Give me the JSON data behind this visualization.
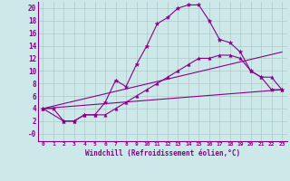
{
  "xlabel": "Windchill (Refroidissement éolien,°C)",
  "background_color": "#cce8e8",
  "grid_color": "#b0c8c8",
  "line_color": "#880088",
  "xlim": [
    -0.5,
    23.5
  ],
  "ylim": [
    -1.2,
    21
  ],
  "xticks": [
    0,
    1,
    2,
    3,
    4,
    5,
    6,
    7,
    8,
    9,
    10,
    11,
    12,
    13,
    14,
    15,
    16,
    17,
    18,
    19,
    20,
    21,
    22,
    23
  ],
  "yticks": [
    0,
    2,
    4,
    6,
    8,
    10,
    12,
    14,
    16,
    18,
    20
  ],
  "ytick_labels": [
    "-0",
    "2",
    "4",
    "6",
    "8",
    "10",
    "12",
    "14",
    "16",
    "18",
    "20"
  ],
  "line1_x": [
    0,
    1,
    2,
    3,
    4,
    5,
    6,
    7,
    8,
    9,
    10,
    11,
    12,
    13,
    14,
    15,
    16,
    17,
    18,
    19,
    20,
    21,
    22,
    23
  ],
  "line1_y": [
    4,
    4,
    2,
    2,
    3,
    3,
    5,
    8.5,
    7.5,
    11,
    14,
    17.5,
    18.5,
    20,
    20.5,
    20.5,
    18,
    15,
    14.5,
    13,
    10,
    9,
    7,
    7
  ],
  "line2_x": [
    0,
    23
  ],
  "line2_y": [
    4,
    7
  ],
  "line3_x": [
    0,
    23
  ],
  "line3_y": [
    4,
    13
  ],
  "line4_x": [
    0,
    2,
    3,
    4,
    5,
    6,
    7,
    8,
    9,
    10,
    11,
    12,
    13,
    14,
    15,
    16,
    17,
    18,
    19,
    20,
    21,
    22,
    23
  ],
  "line4_y": [
    4,
    2,
    2,
    3,
    3,
    3,
    4,
    5,
    6,
    7,
    8,
    9,
    10,
    11,
    12,
    12,
    12.5,
    12.5,
    12,
    10,
    9,
    9,
    7
  ]
}
